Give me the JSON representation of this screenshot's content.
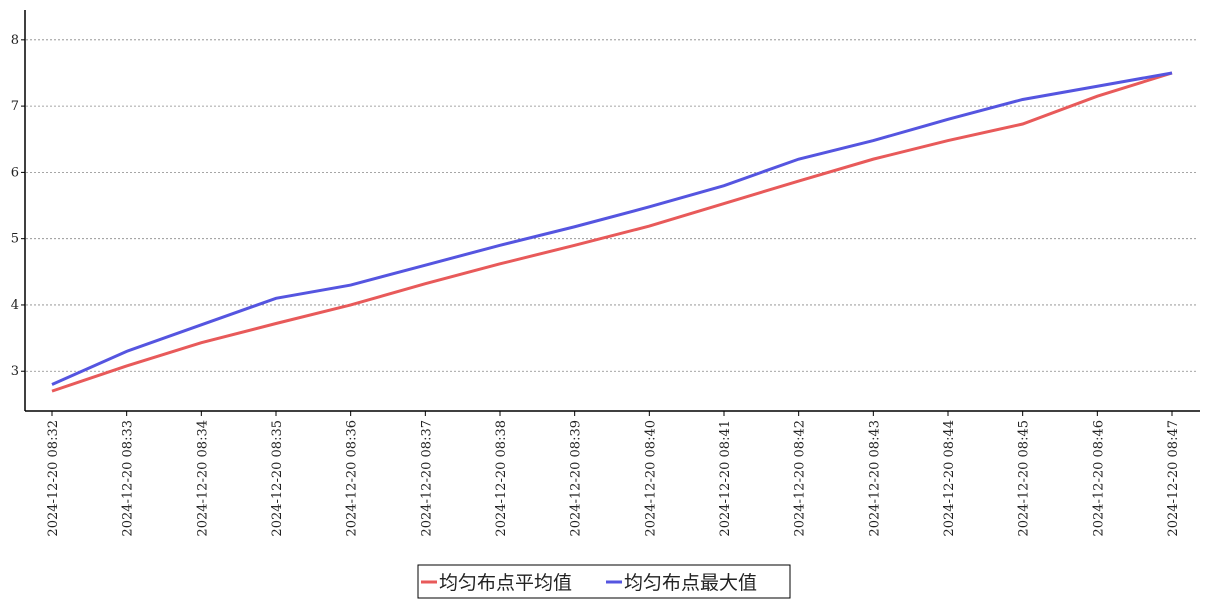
{
  "chart_data": {
    "type": "line",
    "categories": [
      "2024-12-20 08:32",
      "2024-12-20 08:33",
      "2024-12-20 08:34",
      "2024-12-20 08:35",
      "2024-12-20 08:36",
      "2024-12-20 08:37",
      "2024-12-20 08:38",
      "2024-12-20 08:39",
      "2024-12-20 08:40",
      "2024-12-20 08:41",
      "2024-12-20 08:42",
      "2024-12-20 08:43",
      "2024-12-20 08:44",
      "2024-12-20 08:45",
      "2024-12-20 08:46",
      "2024-12-20 08:47"
    ],
    "series": [
      {
        "name": "均匀布点平均值",
        "color": "#e85a5a",
        "values": [
          2.7,
          3.08,
          3.43,
          3.72,
          4.0,
          4.32,
          4.62,
          4.9,
          5.19,
          5.53,
          5.87,
          6.2,
          6.48,
          6.73,
          7.15,
          7.5
        ]
      },
      {
        "name": "均匀布点最大值",
        "color": "#5555e0",
        "values": [
          2.8,
          3.3,
          3.7,
          4.1,
          4.3,
          4.6,
          4.9,
          5.18,
          5.48,
          5.8,
          6.2,
          6.48,
          6.8,
          7.1,
          7.3,
          7.5
        ]
      }
    ],
    "ylim": [
      2.4,
      8.45
    ],
    "yticks": [
      3,
      4,
      5,
      6,
      7,
      8
    ],
    "grid": true,
    "legend": "bottom"
  }
}
